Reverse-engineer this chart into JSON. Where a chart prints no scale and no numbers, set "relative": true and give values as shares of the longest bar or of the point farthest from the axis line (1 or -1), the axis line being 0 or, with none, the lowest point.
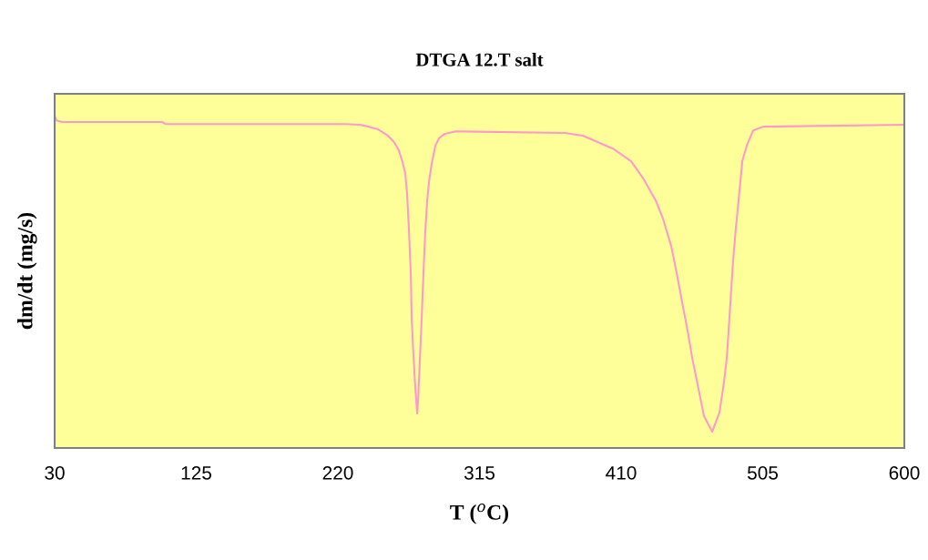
{
  "chart_data": {
    "type": "line",
    "title": "DTGA 12.T salt",
    "xlabel": "T ($^{o}$C)",
    "ylabel": "dm/dt (mg/s)",
    "relative": true,
    "xlim": [
      30,
      600
    ],
    "xticks": [
      30,
      125,
      220,
      315,
      410,
      505,
      600
    ],
    "grid": false,
    "x": [
      30.0,
      31.2,
      34.9,
      102.1,
      104.5,
      225.5,
      234.7,
      240.8,
      246.9,
      253.0,
      257.3,
      260.9,
      263.4,
      265.2,
      266.4,
      267.6,
      268.9,
      269.5,
      270.7,
      271.9,
      273.2,
      273.8,
      275.0,
      276.2,
      277.4,
      278.6,
      279.9,
      281.1,
      282.9,
      285.4,
      287.8,
      291.5,
      298.8,
      372.1,
      384.3,
      404.5,
      416.7,
      425.3,
      433.2,
      438.1,
      443.6,
      447.3,
      451.5,
      454.6,
      457.7,
      461.9,
      465.6,
      471.1,
      476.0,
      479.0,
      480.9,
      483.3,
      485.1,
      487.0,
      489.4,
      491.3,
      494.3,
      498.6,
      505.3,
      600.0
    ],
    "series": [
      {
        "color": "#ff99cc",
        "values": [
          1.0,
          0.986,
          0.981,
          0.981,
          0.975,
          0.975,
          0.973,
          0.967,
          0.959,
          0.942,
          0.923,
          0.896,
          0.86,
          0.827,
          0.767,
          0.663,
          0.526,
          0.389,
          0.279,
          0.184,
          0.104,
          0.142,
          0.266,
          0.389,
          0.526,
          0.649,
          0.745,
          0.8,
          0.855,
          0.91,
          0.932,
          0.945,
          0.953,
          0.948,
          0.94,
          0.901,
          0.863,
          0.808,
          0.745,
          0.69,
          0.608,
          0.526,
          0.425,
          0.353,
          0.271,
          0.178,
          0.096,
          0.049,
          0.107,
          0.197,
          0.271,
          0.436,
          0.562,
          0.663,
          0.773,
          0.863,
          0.91,
          0.956,
          0.967,
          0.973
        ]
      }
    ]
  }
}
